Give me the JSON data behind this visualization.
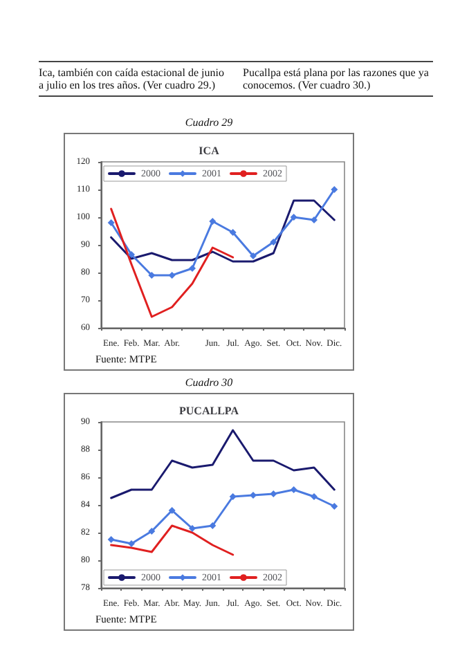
{
  "chart_data": [
    {
      "type": "line",
      "title": "ICA",
      "annotations": [
        "Ica, también con caída estacional de junio a julio en los tres años. (Ver cuadro 29.)",
        "Cuadro 29",
        "Fuente: MTPE"
      ],
      "categories": [
        "Ene.",
        "Feb.",
        "Mar.",
        "Abr.",
        null,
        "Jun.",
        "Jul.",
        "Ago.",
        "Set.",
        "Oct.",
        "Nov.",
        "Dic."
      ],
      "series": [
        {
          "name": "2000",
          "color": "#1a1a6e",
          "marker": "none",
          "values": [
            92.7,
            85,
            87,
            84.5,
            84.5,
            87.5,
            84,
            84,
            87,
            106,
            106,
            99
          ]
        },
        {
          "name": "2001",
          "color": "#4a7ae0",
          "marker": "diamond",
          "values": [
            98,
            86.5,
            79,
            79,
            81.5,
            98.5,
            94.5,
            86,
            91,
            100,
            99,
            110
          ]
        },
        {
          "name": "2002",
          "color": "#e02020",
          "marker": "none",
          "values": [
            103,
            83,
            64,
            67.5,
            76,
            89,
            85.5,
            null,
            null,
            null,
            null,
            null
          ]
        }
      ],
      "ylim": [
        60,
        120
      ],
      "yticks": [
        60,
        70,
        80,
        90,
        100,
        110,
        120
      ],
      "grid": false,
      "legend": "top left"
    },
    {
      "type": "line",
      "title": "PUCALLPA",
      "annotations": [
        "Pucallpa está plana por las razones que ya conocemos. (Ver cuadro 30.)",
        "Cuadro 30",
        "Fuente: MTPE"
      ],
      "categories": [
        "Ene.",
        "Feb.",
        "Mar.",
        "Abr.",
        "May.",
        "Jun.",
        "Jul.",
        "Ago.",
        "Set.",
        "Oct.",
        "Nov.",
        "Dic."
      ],
      "series": [
        {
          "name": "2000",
          "color": "#1a1a6e",
          "marker": "none",
          "values": [
            84.5,
            85.1,
            85.1,
            87.2,
            86.7,
            86.9,
            89.4,
            87.2,
            87.2,
            86.5,
            86.7,
            85.1
          ]
        },
        {
          "name": "2001",
          "color": "#4a7ae0",
          "marker": "diamond",
          "values": [
            81.5,
            81.2,
            82.1,
            83.6,
            82.3,
            82.5,
            84.6,
            84.7,
            84.8,
            85.1,
            84.6,
            83.9
          ]
        },
        {
          "name": "2002",
          "color": "#e02020",
          "marker": "none",
          "values": [
            81.1,
            80.9,
            80.6,
            82.5,
            82,
            81.1,
            80.4,
            null,
            null,
            null,
            null,
            null
          ]
        }
      ],
      "ylim": [
        78,
        90
      ],
      "yticks": [
        78,
        80,
        82,
        84,
        86,
        88,
        90
      ],
      "grid": false,
      "legend": "bottom left"
    }
  ]
}
